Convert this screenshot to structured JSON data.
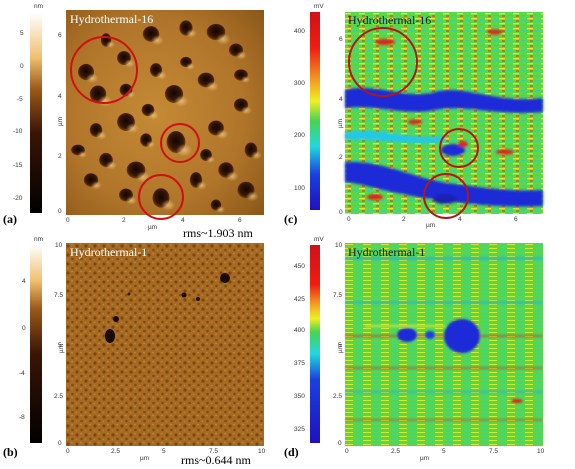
{
  "panels": {
    "a": {
      "letter": "(a)",
      "title": "Hydrothermal-16",
      "rms": "rms~1.903 nm",
      "cb_unit": "nm",
      "cb_ticks": [
        "5",
        "0",
        "-5",
        "-10",
        "-15",
        "-20"
      ],
      "ax_ticks": [
        "0",
        "2",
        "4",
        "6"
      ],
      "ax_unit": "µm"
    },
    "b": {
      "letter": "(b)",
      "title": "Hydrothermal-1",
      "rms": "rms~0.644 nm",
      "cb_unit": "nm",
      "cb_ticks": [
        "4",
        "0",
        "-4",
        "-8"
      ],
      "ax_ticks_x": [
        "0",
        "2.5",
        "5",
        "7.5",
        "10"
      ],
      "ax_ticks_y": [
        "10",
        "7.5",
        "5",
        "2.5",
        "0"
      ],
      "ax_unit": "µm"
    },
    "c": {
      "letter": "(c)",
      "title": "Hydrothermal-16",
      "cb_unit": "mV",
      "cb_ticks": [
        "400",
        "300",
        "200",
        "100"
      ],
      "ax_ticks": [
        "0",
        "2",
        "4",
        "6"
      ],
      "ax_unit": "µm"
    },
    "d": {
      "letter": "(d)",
      "title": "Hydrothermal-1",
      "cb_unit": "mV",
      "cb_ticks": [
        "450",
        "425",
        "400",
        "375",
        "350",
        "325"
      ],
      "ax_ticks_x": [
        "0",
        "2.5",
        "5",
        "7.5",
        "10"
      ],
      "ax_ticks_y": [
        "10",
        "7.5",
        "5",
        "2.5",
        "0"
      ],
      "ax_unit": "µm"
    }
  },
  "colors": {
    "topo_bright": "#f2c26a",
    "topo_mid": "#b87b2a",
    "topo_dark": "#2a1205",
    "kpfm_green": "#48d450",
    "kpfm_blue": "#1a2bd8",
    "kpfm_red": "#e0201a",
    "circle": "#d01010"
  }
}
